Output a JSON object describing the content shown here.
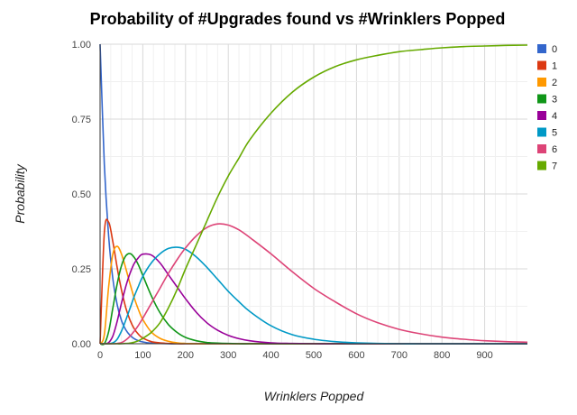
{
  "chart_data": {
    "type": "line",
    "title": "Probability of #Upgrades found vs #Wrinklers Popped",
    "xlabel": "Wrinklers Popped",
    "ylabel": "Probability",
    "xlim": [
      0,
      1000
    ],
    "ylim": [
      0,
      1
    ],
    "x_ticks": [
      "0",
      "100",
      "200",
      "300",
      "400",
      "500",
      "600",
      "700",
      "800",
      "900"
    ],
    "y_ticks": [
      "0.00",
      "0.25",
      "0.50",
      "0.75",
      "1.00"
    ],
    "grid": true,
    "legend_position": "right",
    "x": [
      0,
      10,
      20,
      30,
      40,
      50,
      60,
      70,
      80,
      90,
      100,
      120,
      140,
      160,
      180,
      200,
      225,
      250,
      275,
      300,
      325,
      350,
      400,
      450,
      500,
      550,
      600,
      650,
      700,
      750,
      800,
      850,
      900,
      950,
      1000
    ],
    "series": [
      {
        "name": "0",
        "color": "#3366cc",
        "values": [
          1.0,
          0.6,
          0.36,
          0.216,
          0.13,
          0.078,
          0.047,
          0.028,
          0.017,
          0.01,
          0.006,
          0.002,
          0.001,
          0.0,
          0.0,
          0.0,
          0.0,
          0.0,
          0.0,
          0.0,
          0.0,
          0.0,
          0.0,
          0.0,
          0.0,
          0.0,
          0.0,
          0.0,
          0.0,
          0.0,
          0.0,
          0.0,
          0.0,
          0.0,
          0.0
        ]
      },
      {
        "name": "1",
        "color": "#dc3912",
        "values": [
          0.0,
          0.37,
          0.406,
          0.34,
          0.254,
          0.18,
          0.121,
          0.079,
          0.05,
          0.031,
          0.019,
          0.007,
          0.003,
          0.001,
          0.0,
          0.0,
          0.0,
          0.0,
          0.0,
          0.0,
          0.0,
          0.0,
          0.0,
          0.0,
          0.0,
          0.0,
          0.0,
          0.0,
          0.0,
          0.0,
          0.0,
          0.0,
          0.0,
          0.0,
          0.0
        ]
      },
      {
        "name": "2",
        "color": "#ff9900",
        "values": [
          0.0,
          0.03,
          0.19,
          0.3,
          0.325,
          0.3,
          0.253,
          0.2,
          0.153,
          0.113,
          0.081,
          0.039,
          0.018,
          0.008,
          0.003,
          0.001,
          0.0,
          0.0,
          0.0,
          0.0,
          0.0,
          0.0,
          0.0,
          0.0,
          0.0,
          0.0,
          0.0,
          0.0,
          0.0,
          0.0,
          0.0,
          0.0,
          0.0,
          0.0,
          0.0
        ]
      },
      {
        "name": "3",
        "color": "#109618",
        "values": [
          0.0,
          0.0,
          0.04,
          0.12,
          0.2,
          0.26,
          0.293,
          0.301,
          0.288,
          0.262,
          0.228,
          0.16,
          0.104,
          0.064,
          0.038,
          0.021,
          0.01,
          0.004,
          0.002,
          0.001,
          0.0,
          0.0,
          0.0,
          0.0,
          0.0,
          0.0,
          0.0,
          0.0,
          0.0,
          0.0,
          0.0,
          0.0,
          0.0,
          0.0,
          0.0
        ]
      },
      {
        "name": "4",
        "color": "#990099",
        "values": [
          0.0,
          0.0,
          0.004,
          0.026,
          0.075,
          0.135,
          0.19,
          0.235,
          0.268,
          0.288,
          0.299,
          0.296,
          0.27,
          0.23,
          0.19,
          0.15,
          0.105,
          0.07,
          0.045,
          0.028,
          0.017,
          0.01,
          0.003,
          0.001,
          0.0,
          0.0,
          0.0,
          0.0,
          0.0,
          0.0,
          0.0,
          0.0,
          0.0,
          0.0,
          0.0
        ]
      },
      {
        "name": "5",
        "color": "#0099c6",
        "values": [
          0.0,
          0.0,
          0.0,
          0.003,
          0.015,
          0.042,
          0.078,
          0.118,
          0.158,
          0.193,
          0.225,
          0.27,
          0.3,
          0.318,
          0.322,
          0.315,
          0.29,
          0.255,
          0.215,
          0.175,
          0.14,
          0.108,
          0.06,
          0.03,
          0.015,
          0.007,
          0.003,
          0.001,
          0.0,
          0.0,
          0.0,
          0.0,
          0.0,
          0.0,
          0.0
        ]
      },
      {
        "name": "6",
        "color": "#dd4477",
        "values": [
          0.0,
          0.0,
          0.0,
          0.0,
          0.001,
          0.004,
          0.012,
          0.025,
          0.042,
          0.062,
          0.085,
          0.135,
          0.185,
          0.235,
          0.28,
          0.32,
          0.36,
          0.388,
          0.4,
          0.396,
          0.38,
          0.355,
          0.3,
          0.24,
          0.185,
          0.14,
          0.1,
          0.07,
          0.048,
          0.033,
          0.022,
          0.015,
          0.01,
          0.007,
          0.005
        ]
      },
      {
        "name": "7",
        "color": "#66aa00",
        "values": [
          0.0,
          0.0,
          0.0,
          0.0,
          0.0,
          0.0,
          0.001,
          0.002,
          0.005,
          0.01,
          0.018,
          0.038,
          0.07,
          0.12,
          0.18,
          0.25,
          0.33,
          0.41,
          0.49,
          0.56,
          0.62,
          0.68,
          0.77,
          0.84,
          0.89,
          0.925,
          0.948,
          0.963,
          0.975,
          0.982,
          0.988,
          0.992,
          0.994,
          0.996,
          0.997
        ]
      }
    ]
  }
}
